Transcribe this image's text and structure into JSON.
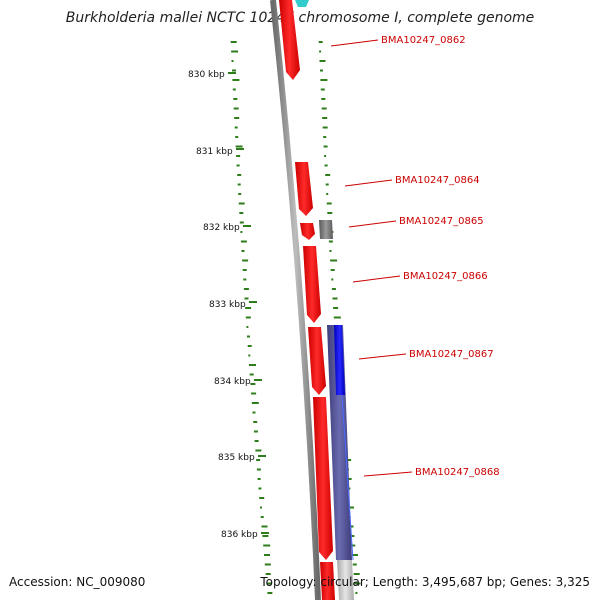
{
  "header": {
    "title": "Burkholderia mallei NCTC 10247 chromosome I, complete genome"
  },
  "footer": {
    "accession": "Accession: NC_009080",
    "summary": "Topology: circular; Length: 3,495,687 bp; Genes: 3,325"
  },
  "scale": {
    "ticks": [
      "830 kbp",
      "831 kbp",
      "832 kbp",
      "833 kbp",
      "834 kbp",
      "835 kbp",
      "836 kbp"
    ]
  },
  "genes": {
    "labels": [
      "BMA10247_0862",
      "BMA10247_0864",
      "BMA10247_0865",
      "BMA10247_0866",
      "BMA10247_0867",
      "BMA10247_0868"
    ]
  },
  "colors": {
    "forward_gene": "#ff0000",
    "other_gene": "#808080",
    "reverse_gene": "#0000ff",
    "feature_purple": "#55559a",
    "feature_cyan": "#33cccc",
    "backbone": "#777777",
    "gc_ticks": "#2e7d1b",
    "label_red": "#cc0000"
  }
}
